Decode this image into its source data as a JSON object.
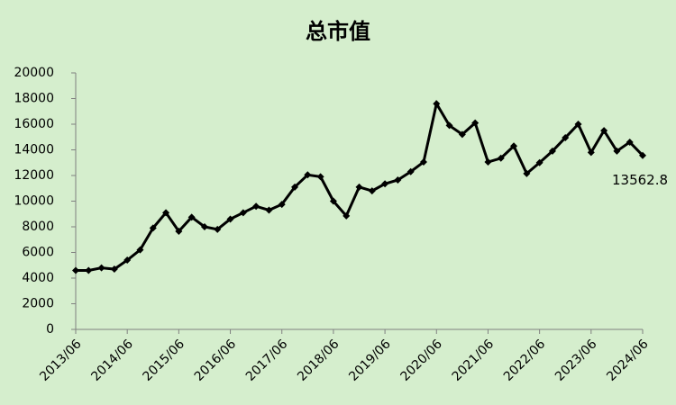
{
  "chart_data": {
    "type": "line",
    "title": "总市值",
    "categories": [
      "2013/06",
      null,
      null,
      null,
      "2014/06",
      null,
      null,
      null,
      "2015/06",
      null,
      null,
      null,
      "2016/06",
      null,
      null,
      null,
      "2017/06",
      null,
      null,
      null,
      "2018/06",
      null,
      null,
      null,
      "2019/06",
      null,
      null,
      null,
      "2020/06",
      null,
      null,
      null,
      "2021/06",
      null,
      null,
      null,
      "2022/06",
      null,
      null,
      null,
      "2023/06",
      null,
      null,
      null,
      "2024/06"
    ],
    "values": [
      4600,
      4600,
      4800,
      4700,
      5400,
      6200,
      7900,
      9100,
      7650,
      8750,
      8000,
      7800,
      8600,
      9100,
      9600,
      9300,
      9750,
      11100,
      12050,
      11900,
      10000,
      8850,
      11100,
      10800,
      11350,
      11650,
      12300,
      13050,
      17600,
      15900,
      15200,
      16100,
      13050,
      13350,
      14300,
      12150,
      13000,
      13900,
      14950,
      16000,
      13800,
      15500,
      13900,
      14600,
      13562.8
    ],
    "color": "#000000",
    "ylim": [
      0,
      20000
    ],
    "yticks": [
      0,
      2000,
      4000,
      6000,
      8000,
      10000,
      12000,
      14000,
      16000,
      18000,
      20000
    ],
    "grid": false
  }
}
